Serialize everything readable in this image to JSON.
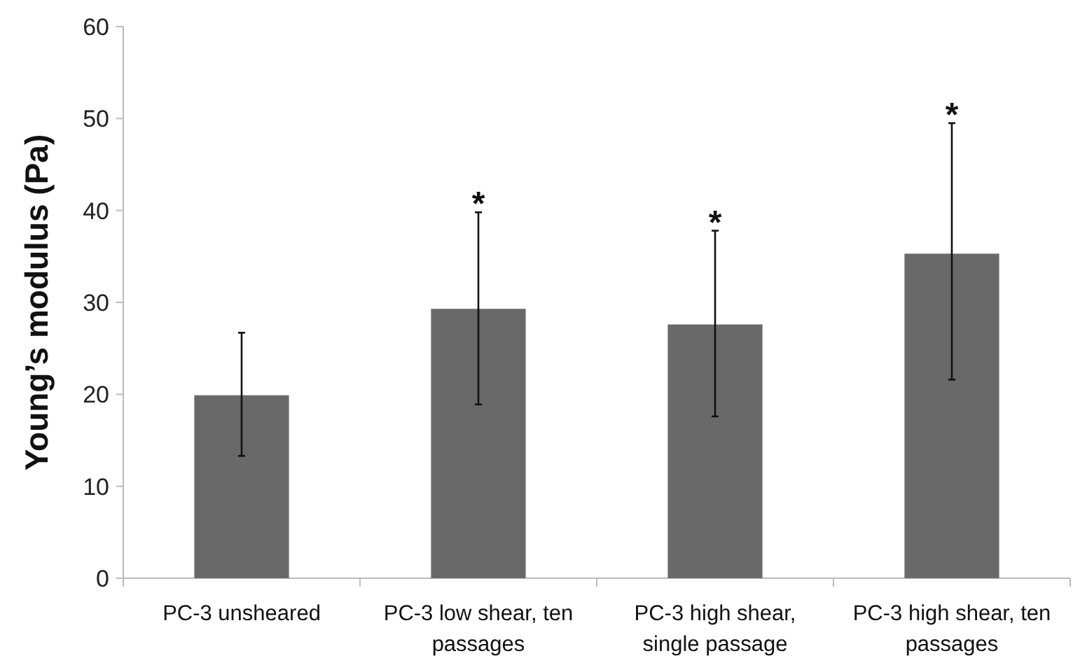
{
  "chart_data": {
    "type": "bar",
    "ylabel": "Young’s modulus (Pa)",
    "categories": [
      "PC-3 unsheared",
      "PC-3 low shear, ten passages",
      "PC-3 high shear, single passage",
      "PC-3 high shear, ten passages"
    ],
    "values": [
      19.9,
      29.3,
      27.6,
      35.3
    ],
    "errors": [
      [
        13.3,
        26.7
      ],
      [
        18.9,
        39.8
      ],
      [
        17.6,
        37.8
      ],
      [
        21.6,
        49.5
      ]
    ],
    "color": "#696969",
    "ylim": [
      0,
      60
    ],
    "yticks": [
      0,
      10,
      20,
      30,
      40,
      50,
      60
    ],
    "grid": false,
    "annotations": [
      {
        "text": "*",
        "x": "PC-3 low shear, ten passages",
        "y": 39.8
      },
      {
        "text": "*",
        "x": "PC-3 high shear, single passage",
        "y": 37.8
      },
      {
        "text": "*",
        "x": "PC-3 high shear, ten passages",
        "y": 49.5
      }
    ]
  }
}
